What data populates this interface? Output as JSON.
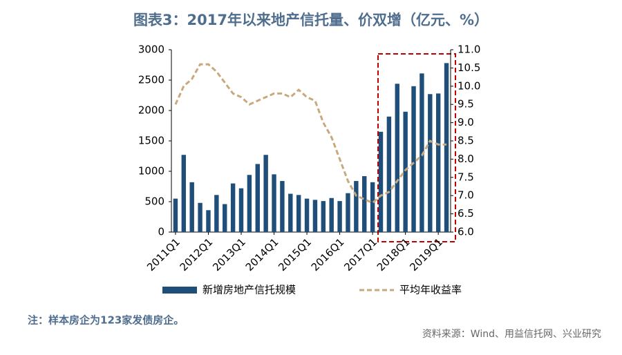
{
  "chart_data": {
    "type": "bar_line",
    "title": "图表3：2017年以来地产信托量、价双增（亿元、%）",
    "note": "注：样本房企为123家发债房企。",
    "source": "资料来源：Wind、用益信托网、兴业研究",
    "categories": [
      "2011Q1",
      null,
      null,
      null,
      "2012Q1",
      null,
      null,
      null,
      "2013Q1",
      null,
      null,
      null,
      "2014Q1",
      null,
      null,
      null,
      "2015Q1",
      null,
      null,
      null,
      "2016Q1",
      null,
      null,
      null,
      "2017Q1",
      null,
      null,
      null,
      "2018Q1",
      null,
      null,
      null,
      "2019Q1",
      null
    ],
    "series": [
      {
        "name": "新增房地产信托规模",
        "color": "#1f4e79",
        "type": "bar",
        "values": [
          550,
          1270,
          820,
          480,
          360,
          610,
          460,
          800,
          720,
          940,
          1120,
          1270,
          950,
          840,
          630,
          610,
          550,
          530,
          510,
          560,
          510,
          640,
          840,
          920,
          820,
          1650,
          1900,
          2440,
          1980,
          2400,
          2610,
          2270,
          2280,
          2780
        ]
      },
      {
        "name": "平均年收益率",
        "color": "#c8a97e",
        "type": "line",
        "axis": "y2",
        "values": [
          9.5,
          10.0,
          10.2,
          10.6,
          10.6,
          10.4,
          10.1,
          9.8,
          9.7,
          9.5,
          9.6,
          9.7,
          9.8,
          9.8,
          9.7,
          9.9,
          9.7,
          9.6,
          9.0,
          8.6,
          8.0,
          7.4,
          7.0,
          6.9,
          6.8,
          7.0,
          7.1,
          7.4,
          7.7,
          7.9,
          8.1,
          8.5,
          8.4,
          8.4
        ]
      }
    ],
    "ylim": [
      0,
      3000
    ],
    "yticks": [
      0,
      500,
      1000,
      1500,
      2000,
      2500,
      3000
    ],
    "y2lim": [
      6.0,
      11.0
    ],
    "y2ticks": [
      {
        "value": 6,
        "label": "6.0"
      },
      6.5,
      {
        "value": 7,
        "label": "7.0"
      },
      7.5,
      {
        "value": 8,
        "label": "8.0"
      },
      8.5,
      {
        "value": 9,
        "label": "9.0"
      },
      9.5,
      {
        "value": 10,
        "label": "10.0"
      },
      10.5,
      {
        "value": 11,
        "label": "11.0"
      }
    ],
    "legend": "bottom",
    "grid": false
  }
}
